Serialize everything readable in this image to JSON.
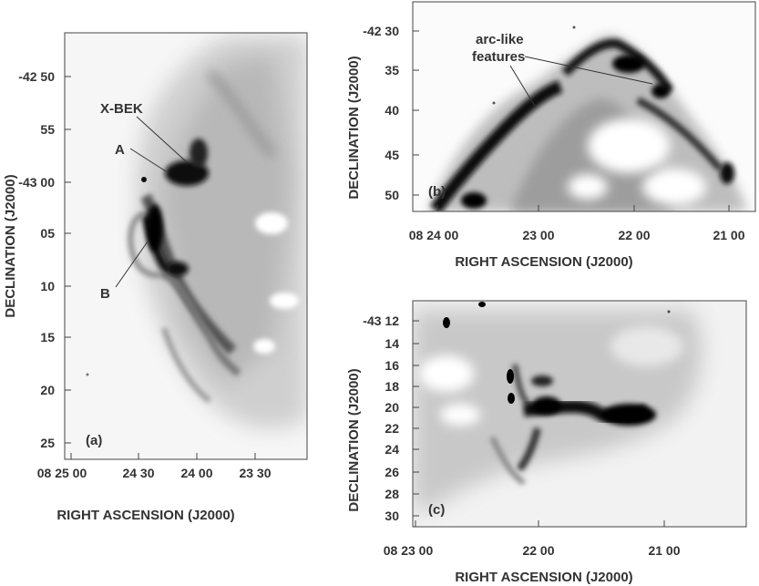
{
  "panel_a": {
    "tag": "(a)",
    "dec_ticks": [
      "-42 50",
      "55",
      "-43 00",
      "05",
      "10",
      "15",
      "20",
      "25"
    ],
    "ra_ticks": [
      "08 25 00",
      "24 30",
      "24 00",
      "23 30"
    ],
    "ylabel": "DECLINATION (J2000)",
    "xlabel": "RIGHT ASCENSION (J2000)",
    "annotations": {
      "xbek": "X-BEK",
      "a": "A",
      "b": "B"
    }
  },
  "panel_b": {
    "tag": "(b)",
    "dec_ticks": [
      "-42 30",
      "35",
      "40",
      "45",
      "50"
    ],
    "ra_ticks": [
      "08 24 00",
      "23 00",
      "22 00",
      "21 00"
    ],
    "ylabel": "DECLINATION (J2000)",
    "xlabel": "RIGHT ASCENSION (J2000)",
    "annotation_line1": "arc-like",
    "annotation_line2": "features"
  },
  "panel_c": {
    "tag": "(c)",
    "dec_ticks": [
      "-43 12",
      "14",
      "16",
      "18",
      "20",
      "22",
      "24",
      "26",
      "28",
      "30"
    ],
    "ra_ticks": [
      "08 23 00",
      "22 00",
      "21 00"
    ],
    "ylabel": "DECLINATION (J2000)",
    "xlabel": "RIGHT ASCENSION (J2000)"
  }
}
